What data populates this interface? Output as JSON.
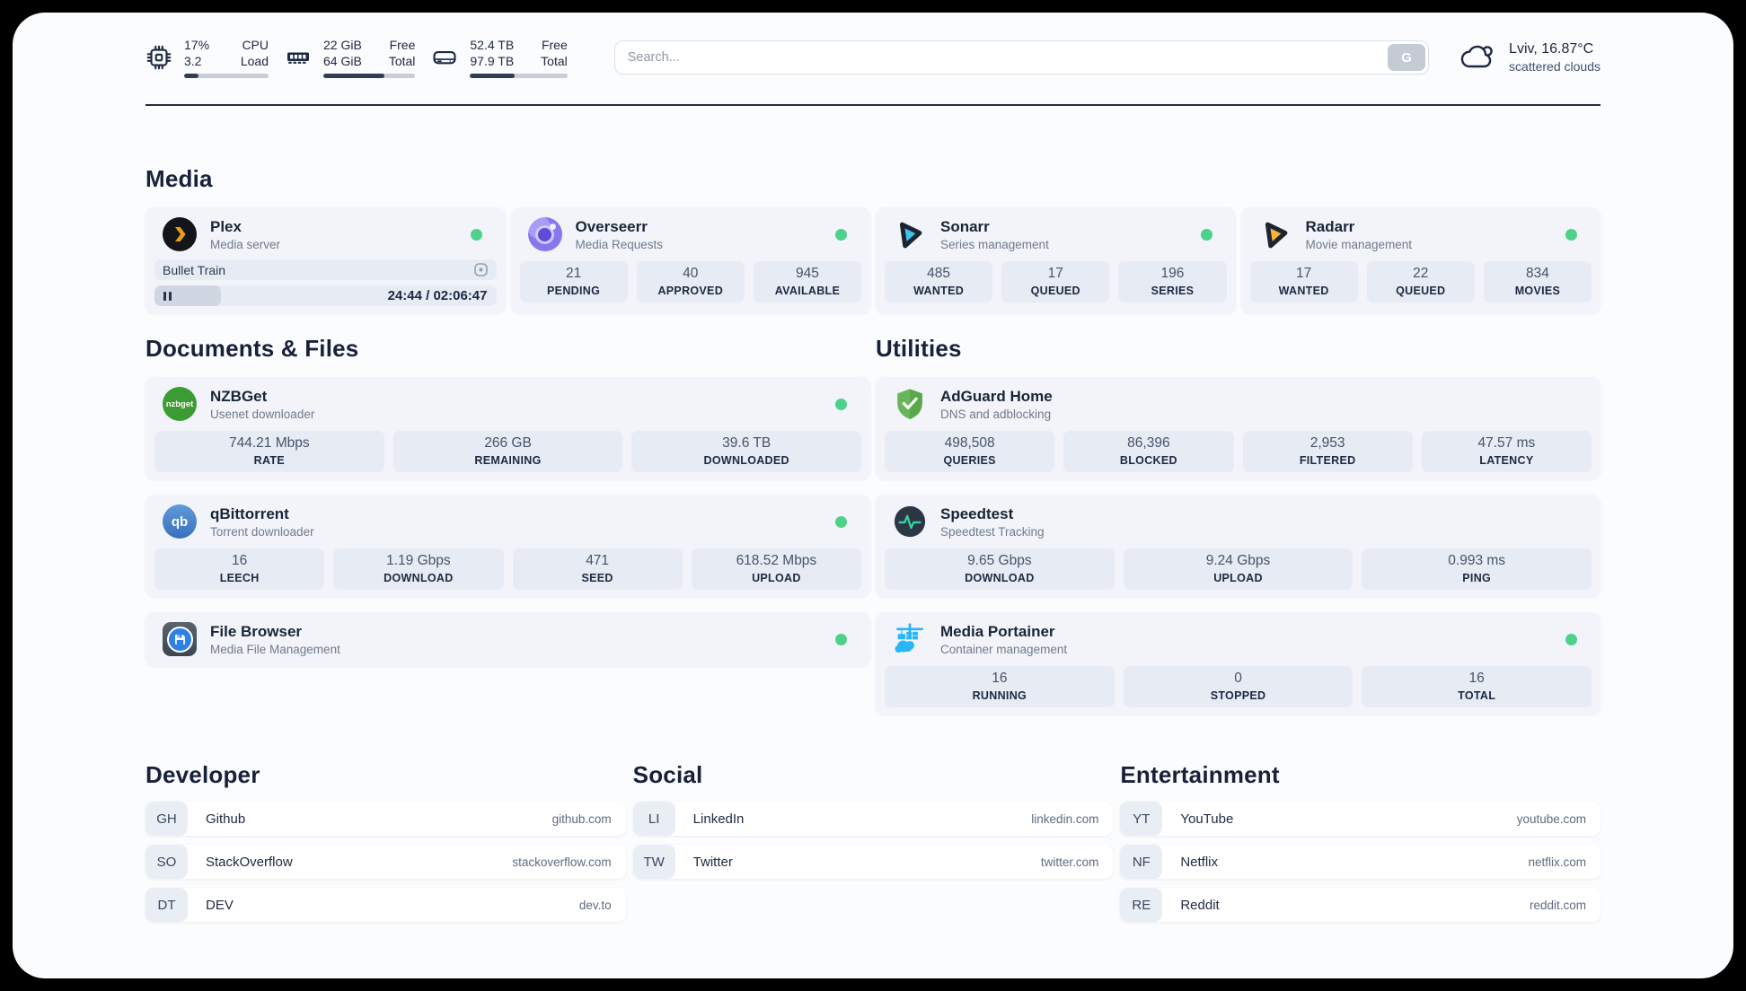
{
  "colors": {
    "status_online": "#4ed18a",
    "accent_dark": "#232e40"
  },
  "topbar": {
    "resources": [
      {
        "icon": "cpu-icon",
        "value_a": "17%",
        "value_b": "3.2",
        "label_a": "CPU",
        "label_b": "Load",
        "progress": 17
      },
      {
        "icon": "memory-icon",
        "value_a": "22 GiB",
        "value_b": "64 GiB",
        "label_a": "Free",
        "label_b": "Total",
        "progress": 66
      },
      {
        "icon": "disk-icon",
        "value_a": "52.4 TB",
        "value_b": "97.9 TB",
        "label_a": "Free",
        "label_b": "Total",
        "progress": 46
      }
    ],
    "search": {
      "placeholder": "Search...",
      "button_label": "G"
    },
    "weather": {
      "location": "Lviv, 16.87°C",
      "condition": "scattered clouds"
    }
  },
  "media": {
    "heading": "Media",
    "plex": {
      "name": "Plex",
      "description": "Media server",
      "now_playing": "Bullet Train",
      "time": "24:44 / 02:06:47",
      "progress": 19.5
    },
    "overseerr": {
      "name": "Overseerr",
      "description": "Media Requests",
      "stats": [
        {
          "value": "21",
          "label": "PENDING"
        },
        {
          "value": "40",
          "label": "APPROVED"
        },
        {
          "value": "945",
          "label": "AVAILABLE"
        }
      ]
    },
    "sonarr": {
      "name": "Sonarr",
      "description": "Series management",
      "stats": [
        {
          "value": "485",
          "label": "WANTED"
        },
        {
          "value": "17",
          "label": "QUEUED"
        },
        {
          "value": "196",
          "label": "SERIES"
        }
      ]
    },
    "radarr": {
      "name": "Radarr",
      "description": "Movie management",
      "stats": [
        {
          "value": "17",
          "label": "WANTED"
        },
        {
          "value": "22",
          "label": "QUEUED"
        },
        {
          "value": "834",
          "label": "MOVIES"
        }
      ]
    }
  },
  "documents": {
    "heading": "Documents & Files",
    "nzbget": {
      "name": "NZBGet",
      "description": "Usenet downloader",
      "icon_text": "nzbget",
      "stats": [
        {
          "value": "744.21 Mbps",
          "label": "RATE"
        },
        {
          "value": "266 GB",
          "label": "REMAINING"
        },
        {
          "value": "39.6 TB",
          "label": "DOWNLOADED"
        }
      ]
    },
    "qbittorrent": {
      "name": "qBittorrent",
      "description": "Torrent downloader",
      "icon_text": "qb",
      "stats": [
        {
          "value": "16",
          "label": "LEECH"
        },
        {
          "value": "1.19 Gbps",
          "label": "DOWNLOAD"
        },
        {
          "value": "471",
          "label": "SEED"
        },
        {
          "value": "618.52 Mbps",
          "label": "UPLOAD"
        }
      ]
    },
    "filebrowser": {
      "name": "File Browser",
      "description": "Media File Management"
    }
  },
  "utilities": {
    "heading": "Utilities",
    "adguard": {
      "name": "AdGuard Home",
      "description": "DNS and adblocking",
      "stats": [
        {
          "value": "498,508",
          "label": "QUERIES"
        },
        {
          "value": "86,396",
          "label": "BLOCKED"
        },
        {
          "value": "2,953",
          "label": "FILTERED"
        },
        {
          "value": "47.57 ms",
          "label": "LATENCY"
        }
      ]
    },
    "speedtest": {
      "name": "Speedtest",
      "description": "Speedtest Tracking",
      "stats": [
        {
          "value": "9.65 Gbps",
          "label": "DOWNLOAD"
        },
        {
          "value": "9.24 Gbps",
          "label": "UPLOAD"
        },
        {
          "value": "0.993 ms",
          "label": "PING"
        }
      ]
    },
    "portainer": {
      "name": "Media Portainer",
      "description": "Container management",
      "stats": [
        {
          "value": "16",
          "label": "RUNNING"
        },
        {
          "value": "0",
          "label": "STOPPED"
        },
        {
          "value": "16",
          "label": "TOTAL"
        }
      ]
    }
  },
  "bookmarks": [
    {
      "heading": "Developer",
      "items": [
        {
          "abbr": "GH",
          "name": "Github",
          "url": "github.com"
        },
        {
          "abbr": "SO",
          "name": "StackOverflow",
          "url": "stackoverflow.com"
        },
        {
          "abbr": "DT",
          "name": "DEV",
          "url": "dev.to"
        }
      ]
    },
    {
      "heading": "Social",
      "items": [
        {
          "abbr": "LI",
          "name": "LinkedIn",
          "url": "linkedin.com"
        },
        {
          "abbr": "TW",
          "name": "Twitter",
          "url": "twitter.com"
        }
      ]
    },
    {
      "heading": "Entertainment",
      "items": [
        {
          "abbr": "YT",
          "name": "YouTube",
          "url": "youtube.com"
        },
        {
          "abbr": "NF",
          "name": "Netflix",
          "url": "netflix.com"
        },
        {
          "abbr": "RE",
          "name": "Reddit",
          "url": "reddit.com"
        }
      ]
    }
  ]
}
